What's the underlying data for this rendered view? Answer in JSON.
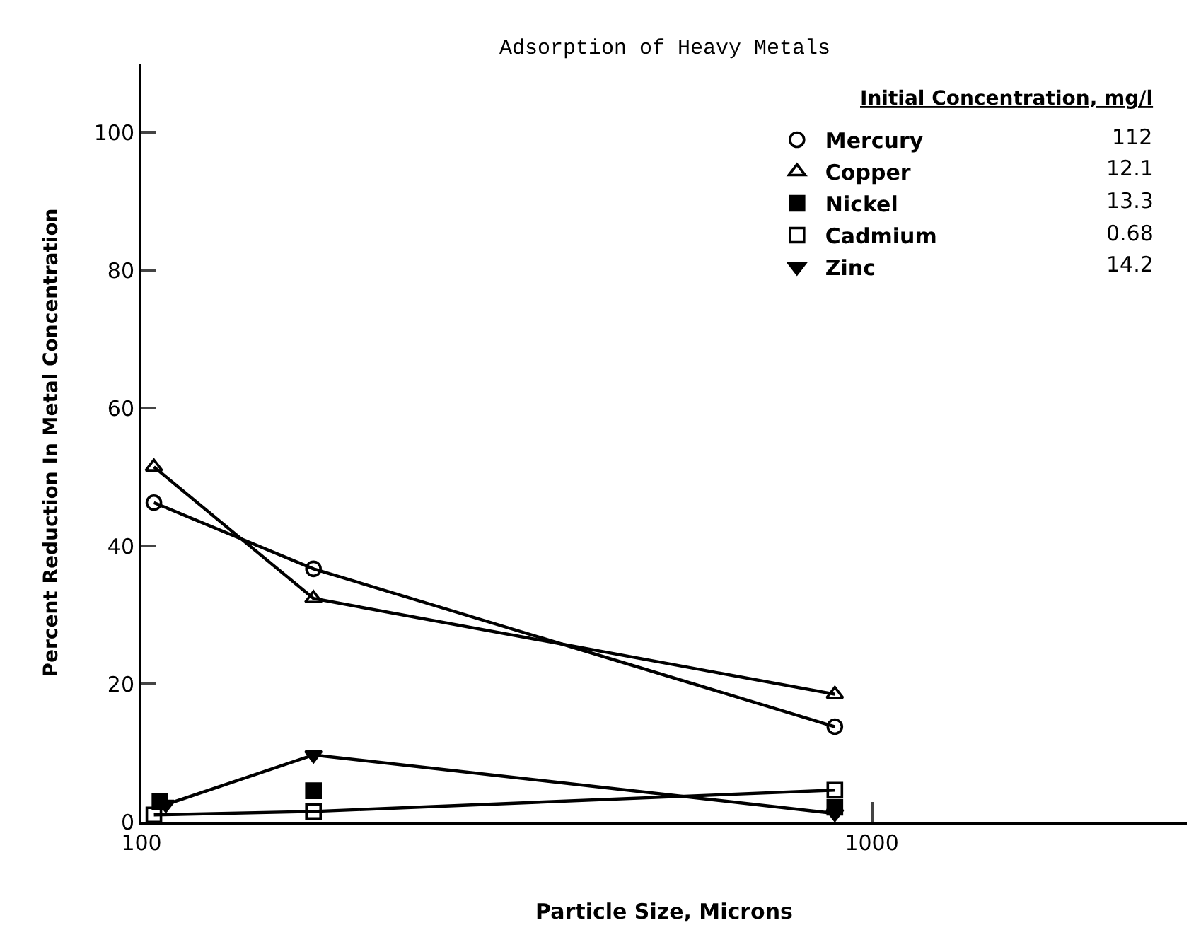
{
  "chart_data": {
    "type": "line",
    "title": "Adsorption of Heavy Metals",
    "xlabel": "Particle Size, Microns",
    "ylabel": "Percent Reduction In Metal Concentration",
    "legend_title": "Initial Concentration, mg/l",
    "log": "x",
    "xlim": [
      100,
      2700
    ],
    "xticks": [
      100,
      1000
    ],
    "ylim": [
      0,
      110
    ],
    "yticks": [
      0,
      20,
      40,
      60,
      80,
      100
    ],
    "legend": "top right",
    "line_style": "solid",
    "series": [
      {
        "name": "Mercury",
        "color": "#000000",
        "marker": "circle-open",
        "x": [
          104,
          172,
          890
        ],
        "values": [
          46.3,
          36.7,
          13.8
        ]
      },
      {
        "name": "Copper",
        "color": "#000000",
        "marker": "triangle-open",
        "x": [
          104,
          172,
          890
        ],
        "values": [
          51.5,
          32.4,
          18.5
        ]
      },
      {
        "name": "Nickel",
        "color": "#000000",
        "marker": "square",
        "type": "scatter",
        "x": [
          106,
          172,
          890
        ],
        "values": [
          2.9,
          4.5,
          2.1
        ]
      },
      {
        "name": "Cadmium",
        "color": "#000000",
        "marker": "square-open",
        "x": [
          104,
          172,
          890
        ],
        "values": [
          1.0,
          1.5,
          4.6
        ]
      },
      {
        "name": "Zinc",
        "color": "#000000",
        "marker": "triangle-down",
        "x": [
          108,
          172,
          890
        ],
        "values": [
          2.5,
          9.7,
          1.2
        ]
      }
    ],
    "annotations": [
      "112",
      "12.1",
      "13.3",
      "0.68",
      "14.2"
    ]
  }
}
